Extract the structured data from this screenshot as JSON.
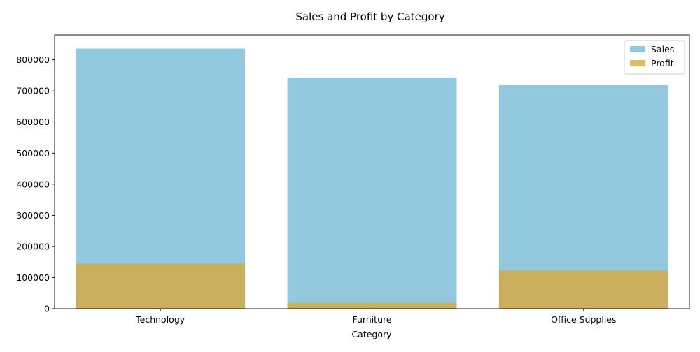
{
  "chart_data": {
    "type": "bar",
    "title": "Sales and Profit by Category",
    "xlabel": "Category",
    "ylabel": "",
    "categories": [
      "Technology",
      "Furniture",
      "Office Supplies"
    ],
    "series": [
      {
        "name": "Sales",
        "values": [
          836154,
          741999,
          719047
        ],
        "color": "#87c3dc"
      },
      {
        "name": "Profit",
        "values": [
          145455,
          18451,
          122491
        ],
        "color": "#d8a93e"
      }
    ],
    "ylim": [
      0,
      880000
    ],
    "yticks": [
      "0",
      "100000",
      "200000",
      "300000",
      "400000",
      "500000",
      "600000",
      "700000",
      "800000"
    ],
    "grid": false,
    "legend_position": "top-right"
  }
}
